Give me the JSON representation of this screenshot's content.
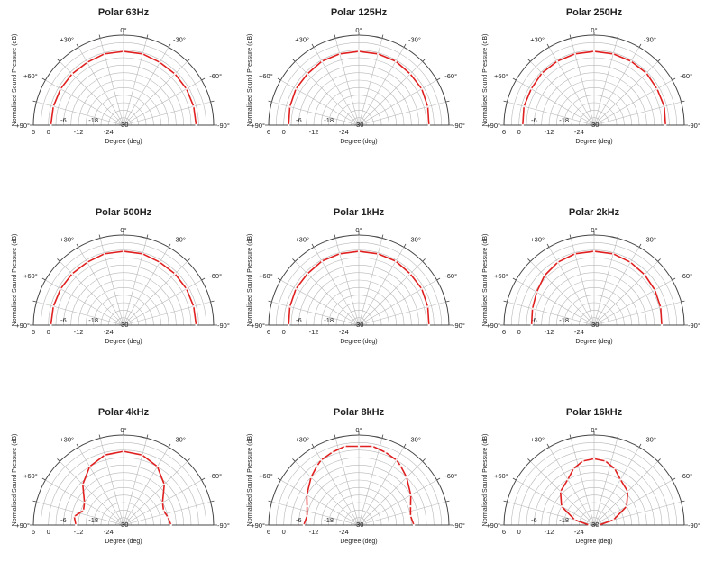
{
  "chart_data": [
    {
      "type": "polar",
      "title": "Polar 63Hz",
      "xlabel": "Degree  (deg)",
      "ylabel": "Normalised Sound Pressure   (dB)",
      "angle_ticks": [
        "+90°",
        "+60°",
        "+30°",
        "0°",
        "-30°",
        "-60°",
        "-90°"
      ],
      "radial_ticks": [
        "6",
        "0",
        "-6",
        "-12",
        "-18",
        "-24",
        "-30"
      ],
      "rlim": [
        -30,
        6
      ],
      "series": [
        {
          "angles": [
            90,
            75,
            60,
            45,
            30,
            15,
            0,
            -15,
            -30,
            -45,
            -60,
            -75,
            -90
          ],
          "values": [
            -1,
            -1,
            -1,
            -1,
            -1,
            -0.5,
            -0.5,
            -0.5,
            -1,
            -1,
            -1,
            -1,
            -1
          ]
        }
      ]
    },
    {
      "type": "polar",
      "title": "Polar 125Hz",
      "xlabel": "Degree  (deg)",
      "ylabel": "Normalised Sound Pressure   (dB)",
      "angle_ticks": [
        "+90°",
        "+60°",
        "+30°",
        "0°",
        "-30°",
        "-60°",
        "-90°"
      ],
      "radial_ticks": [
        "6",
        "0",
        "-6",
        "-12",
        "-18",
        "-24",
        "-30"
      ],
      "rlim": [
        -30,
        6
      ],
      "series": [
        {
          "angles": [
            90,
            75,
            60,
            45,
            30,
            15,
            0,
            -15,
            -30,
            -45,
            -60,
            -75,
            -90
          ],
          "values": [
            -2,
            -1.5,
            -1,
            -1,
            -0.5,
            -0.5,
            -0.5,
            -0.5,
            -0.5,
            -1,
            -1,
            -1.5,
            -2
          ]
        }
      ]
    },
    {
      "type": "polar",
      "title": "Polar 250Hz",
      "xlabel": "Degree  (deg)",
      "ylabel": "Normalised Sound Pressure   (dB)",
      "angle_ticks": [
        "+90°",
        "+60°",
        "+30°",
        "0°",
        "-30°",
        "-60°",
        "-90°"
      ],
      "radial_ticks": [
        "6",
        "0",
        "-6",
        "-12",
        "-18",
        "-24",
        "-30"
      ],
      "rlim": [
        -30,
        6
      ],
      "series": [
        {
          "angles": [
            90,
            75,
            60,
            45,
            30,
            15,
            0,
            -15,
            -30,
            -45,
            -60,
            -75,
            -90
          ],
          "values": [
            -1.5,
            -1,
            -1,
            -0.5,
            -0.5,
            -0.5,
            -0.5,
            -0.5,
            -0.5,
            -0.5,
            -1,
            -1,
            -1.5
          ]
        }
      ]
    },
    {
      "type": "polar",
      "title": "Polar 500Hz",
      "xlabel": "Degree  (deg)",
      "ylabel": "Normalised Sound Pressure   (dB)",
      "angle_ticks": [
        "+90°",
        "+60°",
        "+30°",
        "0°",
        "-30°",
        "-60°",
        "-90°"
      ],
      "radial_ticks": [
        "6",
        "0",
        "-6",
        "-12",
        "-18",
        "-24",
        "-30"
      ],
      "rlim": [
        -30,
        6
      ],
      "series": [
        {
          "angles": [
            90,
            75,
            60,
            45,
            30,
            15,
            0,
            -15,
            -30,
            -45,
            -60,
            -75,
            -90
          ],
          "values": [
            -1,
            -1,
            -1,
            -1,
            -1,
            -0.5,
            -0.5,
            -0.5,
            -1,
            -1,
            -1,
            -1,
            -1
          ]
        }
      ]
    },
    {
      "type": "polar",
      "title": "Polar 1kHz",
      "xlabel": "Degree  (deg)",
      "ylabel": "Normalised Sound Pressure   (dB)",
      "angle_ticks": [
        "+90°",
        "+60°",
        "+30°",
        "0°",
        "-30°",
        "-60°",
        "-90°"
      ],
      "radial_ticks": [
        "6",
        "0",
        "-6",
        "-12",
        "-18",
        "-24",
        "-30"
      ],
      "rlim": [
        -30,
        6
      ],
      "series": [
        {
          "angles": [
            90,
            75,
            60,
            45,
            30,
            15,
            0,
            -15,
            -30,
            -45,
            -60,
            -75,
            -90
          ],
          "values": [
            -2,
            -1.5,
            -1,
            -1,
            -0.5,
            -0.5,
            -0.5,
            -0.5,
            -0.5,
            -1,
            -1,
            -1.5,
            -2
          ]
        }
      ]
    },
    {
      "type": "polar",
      "title": "Polar 2kHz",
      "xlabel": "Degree  (deg)",
      "ylabel": "Normalised Sound Pressure   (dB)",
      "angle_ticks": [
        "+90°",
        "+60°",
        "+30°",
        "0°",
        "-30°",
        "-60°",
        "-90°"
      ],
      "radial_ticks": [
        "6",
        "0",
        "-6",
        "-12",
        "-18",
        "-24",
        "-30"
      ],
      "rlim": [
        -30,
        6
      ],
      "series": [
        {
          "angles": [
            90,
            75,
            60,
            45,
            30,
            15,
            0,
            -15,
            -30,
            -45,
            -60,
            -75,
            -90
          ],
          "values": [
            -5,
            -4.5,
            -3.5,
            -2,
            -1,
            -0.5,
            -0.5,
            -0.5,
            -1,
            -1.5,
            -2,
            -2.5,
            -3
          ]
        }
      ]
    },
    {
      "type": "polar",
      "title": "Polar 4kHz",
      "xlabel": "Degree  (deg)",
      "ylabel": "Normalised Sound Pressure   (dB)",
      "angle_ticks": [
        "+90°",
        "+60°",
        "+30°",
        "0°",
        "-30°",
        "-60°",
        "-90°"
      ],
      "radial_ticks": [
        "6",
        "0",
        "-6",
        "-12",
        "-18",
        "-24",
        "-30"
      ],
      "rlim": [
        -30,
        6
      ],
      "series": [
        {
          "angles": [
            90,
            80,
            70,
            60,
            45,
            30,
            15,
            0,
            -15,
            -30,
            -45,
            -60,
            -70,
            -80,
            -90
          ],
          "values": [
            -11,
            -10,
            -13,
            -12,
            -7,
            -3,
            -1,
            -0.5,
            -1,
            -3,
            -7,
            -12,
            -13,
            -12,
            -11
          ]
        }
      ]
    },
    {
      "type": "polar",
      "title": "Polar 8kHz",
      "xlabel": "Degree  (deg)",
      "ylabel": "Normalised Sound Pressure   (dB)",
      "angle_ticks": [
        "+90°",
        "+60°",
        "+30°",
        "0°",
        "-30°",
        "-60°",
        "-90°"
      ],
      "radial_ticks": [
        "6",
        "0",
        "-6",
        "-12",
        "-18",
        "-24",
        "-30"
      ],
      "rlim": [
        -30,
        6
      ],
      "series": [
        {
          "angles": [
            90,
            80,
            70,
            60,
            45,
            35,
            30,
            20,
            10,
            0,
            -10,
            -20,
            -30,
            -35,
            -45,
            -60,
            -70,
            -80,
            -90
          ],
          "values": [
            -8,
            -9,
            -8,
            -6,
            -3,
            -1,
            0,
            1,
            2,
            1.5,
            2,
            1,
            0,
            -1,
            -3,
            -6,
            -8,
            -9,
            -8
          ]
        }
      ]
    },
    {
      "type": "polar",
      "title": "Polar 16kHz",
      "xlabel": "Degree  (deg)",
      "ylabel": "Normalised Sound Pressure   (dB)",
      "angle_ticks": [
        "+90°",
        "+60°",
        "+30°",
        "0°",
        "-30°",
        "-60°",
        "-90°"
      ],
      "radial_ticks": [
        "6",
        "0",
        "-6",
        "-12",
        "-18",
        "-24",
        "-30"
      ],
      "rlim": [
        -30,
        6
      ],
      "series": [
        {
          "angles": [
            90,
            75,
            60,
            45,
            30,
            20,
            10,
            0,
            -10,
            -20,
            -30,
            -45,
            -60,
            -75,
            -90
          ],
          "values": [
            -28,
            -22,
            -15,
            -11,
            -9,
            -6,
            -4,
            -3.5,
            -4,
            -6,
            -9,
            -11,
            -15,
            -22,
            -28
          ]
        }
      ]
    }
  ],
  "style": {
    "curve_color": "#e02020",
    "grid_color": "#b8b8b8",
    "axis_color": "#444444"
  }
}
